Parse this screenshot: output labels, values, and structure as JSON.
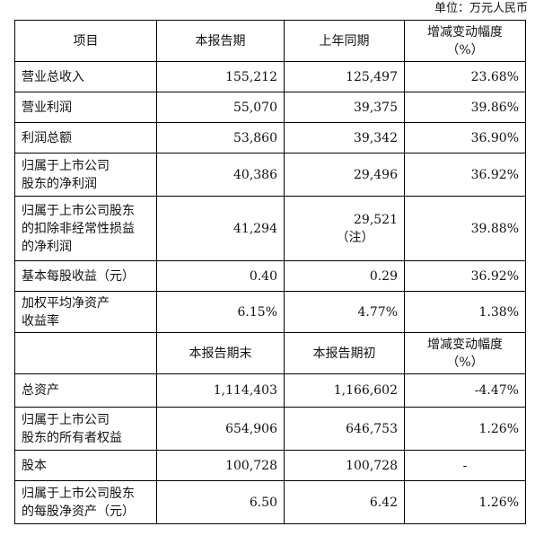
{
  "unit_label": "单位：万元人民币",
  "header1": {
    "item": "项目",
    "current": "本报告期",
    "prior": "上年同期",
    "change_line1": "增减变动幅度",
    "change_line2": "（%）"
  },
  "rows1": [
    {
      "label_lines": [
        "营业总收入"
      ],
      "current": "155,212",
      "prior": "125,497",
      "prior_note": "",
      "change": "23.68%"
    },
    {
      "label_lines": [
        "营业利润"
      ],
      "current": "55,070",
      "prior": "39,375",
      "prior_note": "",
      "change": "39.86%"
    },
    {
      "label_lines": [
        "利润总额"
      ],
      "current": "53,860",
      "prior": "39,342",
      "prior_note": "",
      "change": "36.90%"
    },
    {
      "label_lines": [
        "归属于上市公司",
        "股东的净利润"
      ],
      "current": "40,386",
      "prior": "29,496",
      "prior_note": "",
      "change": "36.92%"
    },
    {
      "label_lines": [
        "归属于上市公司股东",
        "的扣除非经常性损益",
        "的净利润"
      ],
      "current": "41,294",
      "prior": "29,521",
      "prior_note": "（注）",
      "change": "39.88%"
    },
    {
      "label_lines": [
        "基本每股收益（元）"
      ],
      "current": "0.40",
      "prior": "0.29",
      "prior_note": "",
      "change": "36.92%"
    },
    {
      "label_lines": [
        "加权平均净资产",
        "收益率"
      ],
      "current": "6.15%",
      "prior": "4.77%",
      "prior_note": "",
      "change": "1.38%"
    }
  ],
  "header2": {
    "item": "",
    "current": "本报告期末",
    "prior": "本报告期初",
    "change_line1": "增减变动幅度",
    "change_line2": "（%）"
  },
  "rows2": [
    {
      "label_lines": [
        "总资产"
      ],
      "current": "1,114,403",
      "prior": "1,166,602",
      "prior_note": "",
      "change": "-4.47%",
      "change_align": "r"
    },
    {
      "label_lines": [
        "归属于上市公司",
        "股东的所有者权益"
      ],
      "current": "654,906",
      "prior": "646,753",
      "prior_note": "",
      "change": "1.26%",
      "change_align": "r"
    },
    {
      "label_lines": [
        "股本"
      ],
      "current": "100,728",
      "prior": "100,728",
      "prior_note": "",
      "change": "-",
      "change_align": "c"
    },
    {
      "label_lines": [
        "归属于上市公司股东",
        "的每股净资产（元）"
      ],
      "current": "6.50",
      "prior": "6.42",
      "prior_note": "",
      "change": "1.26%",
      "change_align": "r"
    }
  ]
}
